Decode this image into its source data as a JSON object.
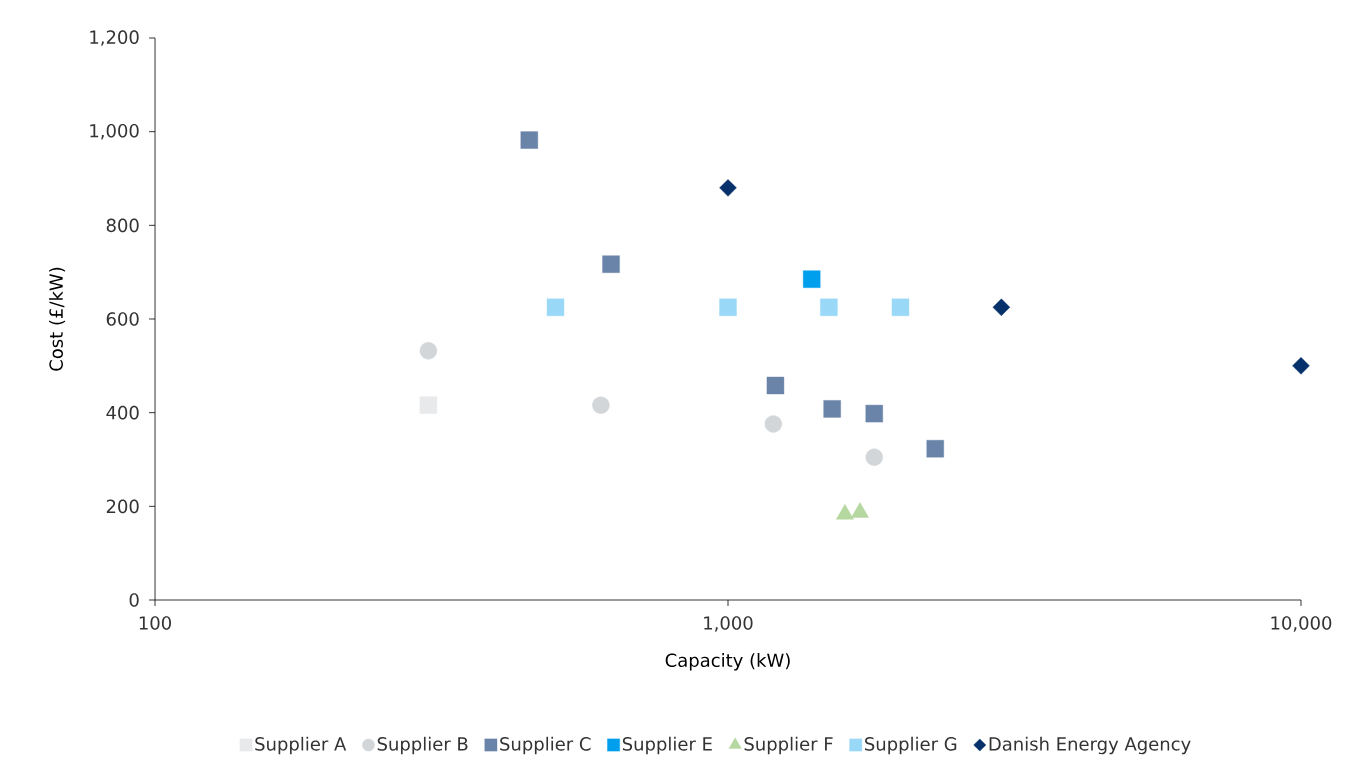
{
  "chart_data": {
    "type": "scatter",
    "xlabel": "Capacity (kW)",
    "ylabel": "Cost (£/kW)",
    "log": "x",
    "xlim": [
      100,
      10000
    ],
    "xticks": [
      100,
      {
        "value": 1000,
        "label": "1,000"
      },
      {
        "value": 10000,
        "label": "10,000"
      }
    ],
    "ylim": [
      0,
      1200
    ],
    "yticks": [
      0,
      200,
      400,
      600,
      800,
      {
        "value": 1000,
        "label": "1,000"
      },
      {
        "value": 1200,
        "label": "1,200"
      }
    ],
    "legend": "bottom",
    "series": [
      {
        "name": "Supplier A",
        "color": "#e8e9eb",
        "marker": "square",
        "x": [
          300
        ],
        "values": [
          416
        ]
      },
      {
        "name": "Supplier B",
        "color": "#d3d6d9",
        "marker": "circle",
        "x": [
          300,
          600,
          1200,
          1800
        ],
        "values": [
          532,
          416,
          376,
          305
        ]
      },
      {
        "name": "Supplier C",
        "color": "#6a84a9",
        "marker": "square",
        "x": [
          450,
          625,
          1210,
          1520,
          1800,
          2300
        ],
        "values": [
          982,
          717,
          458,
          408,
          398,
          323
        ]
      },
      {
        "name": "Supplier E",
        "color": "#009fee",
        "marker": "square",
        "x": [
          1400
        ],
        "values": [
          685
        ]
      },
      {
        "name": "Supplier F",
        "color": "#b5d7a0",
        "marker": "triangle",
        "x": [
          1600,
          1700
        ],
        "values": [
          183,
          187
        ]
      },
      {
        "name": "Supplier G",
        "color": "#99d8f7",
        "marker": "square",
        "x": [
          500,
          1000,
          1500,
          2000
        ],
        "values": [
          625,
          625,
          625,
          625
        ]
      },
      {
        "name": "Danish Energy Agency",
        "color": "#06316b",
        "marker": "diamond",
        "x": [
          1000,
          3000,
          10000
        ],
        "values": [
          880,
          625,
          500
        ]
      }
    ]
  }
}
